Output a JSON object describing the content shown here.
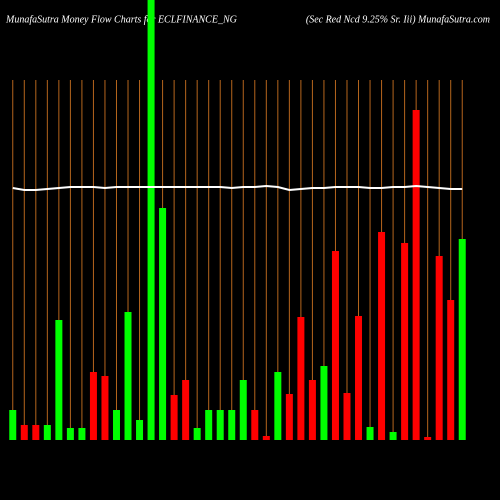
{
  "chart_data": {
    "type": "bar",
    "title": "MunafaSutra  Money Flow  Charts for ECLFINANCE_NG",
    "subtitle": "(Sec Red Ncd 9.25% Sr. Iii) MunafaSutra.com",
    "ylim": [
      0,
      440
    ],
    "values": [
      30,
      15,
      15,
      15,
      120,
      12,
      12,
      68,
      64,
      30,
      128,
      20,
      440,
      232,
      45,
      60,
      12,
      30,
      30,
      30,
      60,
      30,
      4,
      68,
      46,
      123,
      60,
      74,
      189,
      47,
      124,
      13,
      208,
      8,
      197,
      330,
      3,
      184,
      140,
      201
    ],
    "colors": [
      "#00ff00",
      "#ff0000",
      "#ff0000",
      "#00ff00",
      "#00ff00",
      "#00ff00",
      "#00ff00",
      "#ff0000",
      "#ff0000",
      "#00ff00",
      "#00ff00",
      "#00ff00",
      "#00ff00",
      "#00ff00",
      "#ff0000",
      "#ff0000",
      "#00ff00",
      "#00ff00",
      "#00ff00",
      "#00ff00",
      "#00ff00",
      "#ff0000",
      "#ff0000",
      "#00ff00",
      "#ff0000",
      "#ff0000",
      "#ff0000",
      "#00ff00",
      "#ff0000",
      "#ff0000",
      "#ff0000",
      "#00ff00",
      "#ff0000",
      "#00ff00",
      "#ff0000",
      "#ff0000",
      "#ff0000",
      "#ff0000",
      "#ff0000",
      "#00ff00"
    ],
    "line": {
      "color": "#ffffff",
      "values": [
        252,
        250,
        250,
        251,
        252,
        253,
        253,
        253,
        252,
        253,
        253,
        253,
        253,
        253,
        253,
        253,
        253,
        253,
        253,
        252,
        253,
        253,
        254,
        253,
        250,
        251,
        252,
        252,
        253,
        253,
        253,
        252,
        252,
        253,
        253,
        254,
        253,
        252,
        251,
        251
      ]
    },
    "gridline_color": "#b5651d"
  }
}
